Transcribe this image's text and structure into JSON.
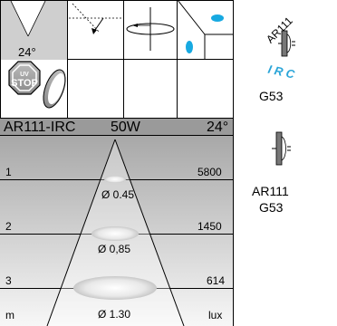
{
  "header": {
    "model": "AR111-IRC",
    "power": "50W",
    "angle": "24°"
  },
  "icons": {
    "beam_angle": "24°",
    "uv_top": "UV",
    "uv_bottom": "STOP"
  },
  "product_marks": {
    "ar_text": "AR111",
    "irc_text": "I R C",
    "irc_color": "#2aa5d8"
  },
  "sidebar": {
    "base_1": "G53",
    "name_2": "AR111",
    "base_2": "G53"
  },
  "beam_rows": [
    {
      "distance": "1",
      "lux": "5800",
      "diameter": "Ø 0.45"
    },
    {
      "distance": "2",
      "lux": "1450",
      "diameter": "Ø 0,85"
    },
    {
      "distance": "3",
      "lux": "614",
      "diameter": "Ø 1.30"
    }
  ],
  "footer": {
    "unit_distance": "m",
    "unit_lux": "lux"
  }
}
